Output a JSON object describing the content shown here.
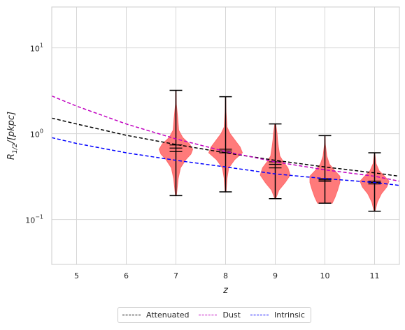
{
  "chart_data": {
    "type": "violin",
    "xlabel": "z",
    "ylabel": "R_{1/2}/[pkpc]",
    "xlim": [
      4.5,
      11.5
    ],
    "ylim": [
      0.03,
      30
    ],
    "yscale": "log",
    "grid": true,
    "legend_position": "bottom-center",
    "x_ticks": [
      "5",
      "6",
      "7",
      "8",
      "9",
      "10",
      "11"
    ],
    "y_ticks": [
      {
        "value": 0.1,
        "base": "10",
        "exp": "−1"
      },
      {
        "value": 1,
        "base": "10",
        "exp": "0"
      },
      {
        "value": 10,
        "base": "10",
        "exp": "1"
      }
    ],
    "violins": [
      {
        "z": 7,
        "min": 0.19,
        "max": 3.2,
        "q1": 0.62,
        "median": 0.68,
        "q3": 0.74,
        "profile": [
          [
            0.19,
            0.01
          ],
          [
            0.3,
            0.05
          ],
          [
            0.4,
            0.1
          ],
          [
            0.5,
            0.22
          ],
          [
            0.58,
            0.33
          ],
          [
            0.66,
            0.37
          ],
          [
            0.76,
            0.3
          ],
          [
            0.9,
            0.15
          ],
          [
            1.1,
            0.06
          ],
          [
            1.5,
            0.04
          ],
          [
            2.2,
            0.01
          ],
          [
            3.2,
            0.005
          ]
        ]
      },
      {
        "z": 8,
        "min": 0.21,
        "max": 2.7,
        "q1": 0.6,
        "median": 0.63,
        "q3": 0.66,
        "profile": [
          [
            0.21,
            0.01
          ],
          [
            0.3,
            0.03
          ],
          [
            0.4,
            0.07
          ],
          [
            0.5,
            0.2
          ],
          [
            0.6,
            0.37
          ],
          [
            0.7,
            0.32
          ],
          [
            0.85,
            0.2
          ],
          [
            1.0,
            0.1
          ],
          [
            1.2,
            0.03
          ],
          [
            1.8,
            0.01
          ],
          [
            2.7,
            0.003
          ]
        ]
      },
      {
        "z": 9,
        "min": 0.175,
        "max": 1.3,
        "q1": 0.4,
        "median": 0.44,
        "q3": 0.47,
        "profile": [
          [
            0.175,
            0.01
          ],
          [
            0.22,
            0.08
          ],
          [
            0.27,
            0.22
          ],
          [
            0.33,
            0.33
          ],
          [
            0.4,
            0.28
          ],
          [
            0.47,
            0.18
          ],
          [
            0.55,
            0.1
          ],
          [
            0.7,
            0.07
          ],
          [
            0.85,
            0.05
          ],
          [
            1.0,
            0.04
          ],
          [
            1.3,
            0.01
          ]
        ]
      },
      {
        "z": 10,
        "min": 0.155,
        "max": 0.95,
        "q1": 0.28,
        "median": 0.29,
        "q3": 0.3,
        "profile": [
          [
            0.155,
            0.16
          ],
          [
            0.18,
            0.22
          ],
          [
            0.22,
            0.28
          ],
          [
            0.27,
            0.33
          ],
          [
            0.32,
            0.33
          ],
          [
            0.37,
            0.22
          ],
          [
            0.44,
            0.1
          ],
          [
            0.55,
            0.04
          ],
          [
            0.75,
            0.01
          ],
          [
            0.95,
            0.003
          ]
        ]
      },
      {
        "z": 11,
        "min": 0.125,
        "max": 0.6,
        "q1": 0.26,
        "median": 0.27,
        "q3": 0.28,
        "profile": [
          [
            0.125,
            0.01
          ],
          [
            0.16,
            0.06
          ],
          [
            0.2,
            0.15
          ],
          [
            0.24,
            0.27
          ],
          [
            0.28,
            0.32
          ],
          [
            0.32,
            0.22
          ],
          [
            0.37,
            0.1
          ],
          [
            0.45,
            0.03
          ],
          [
            0.6,
            0.003
          ]
        ]
      }
    ],
    "series": [
      {
        "name": "Attenuated",
        "color": "#000000",
        "x": [
          4.5,
          5,
          6,
          7,
          8,
          9,
          10,
          11,
          11.5
        ],
        "y": [
          1.52,
          1.3,
          0.96,
          0.75,
          0.6,
          0.49,
          0.41,
          0.35,
          0.32
        ]
      },
      {
        "name": "Dust",
        "color": "#c000c0",
        "x": [
          4.5,
          5,
          6,
          7,
          8,
          9,
          10,
          11,
          11.5
        ],
        "y": [
          2.75,
          2.1,
          1.3,
          0.87,
          0.62,
          0.47,
          0.38,
          0.32,
          0.28
        ]
      },
      {
        "name": "Intrinsic",
        "color": "#0000ff",
        "x": [
          4.5,
          5,
          6,
          7,
          8,
          9,
          10,
          11,
          11.5
        ],
        "y": [
          0.9,
          0.77,
          0.6,
          0.49,
          0.41,
          0.34,
          0.3,
          0.27,
          0.25
        ]
      }
    ],
    "violin_color": "#ff6b6b"
  }
}
